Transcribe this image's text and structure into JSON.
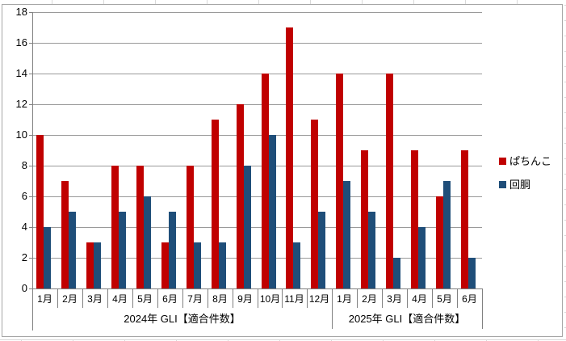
{
  "window": {
    "background": "#ffffff",
    "chart_border_color": "#a6a6a6"
  },
  "chart_data": {
    "type": "bar",
    "title": "",
    "xlabel": "",
    "ylabel": "",
    "ylim": [
      0,
      18
    ],
    "y_tick_step": 2,
    "y_tick_labels": [
      "0",
      "2",
      "4",
      "6",
      "8",
      "10",
      "12",
      "14",
      "16",
      "18"
    ],
    "grid": true,
    "legend_position": "right",
    "colors": {
      "gridline": "#9a9a9a",
      "axis": "#808080",
      "text": "#000000"
    },
    "groups": [
      {
        "label": "2024年 GLI【適合件数】",
        "months": [
          "1月",
          "2月",
          "3月",
          "4月",
          "5月",
          "6月",
          "7月",
          "8月",
          "9月",
          "10月",
          "11月",
          "12月"
        ]
      },
      {
        "label": "2025年 GLI【適合件数】",
        "months": [
          "1月",
          "2月",
          "3月",
          "4月",
          "5月",
          "6月"
        ]
      }
    ],
    "categories": [
      "1月",
      "2月",
      "3月",
      "4月",
      "5月",
      "6月",
      "7月",
      "8月",
      "9月",
      "10月",
      "11月",
      "12月",
      "1月",
      "2月",
      "3月",
      "4月",
      "5月",
      "6月"
    ],
    "series": [
      {
        "name": "ぱちんこ",
        "key": "pachinko",
        "color": "#c00000",
        "values": [
          10,
          7,
          3,
          8,
          8,
          3,
          8,
          11,
          12,
          14,
          17,
          11,
          14,
          9,
          14,
          9,
          6,
          9
        ]
      },
      {
        "name": "回胴",
        "key": "kaidou",
        "color": "#1f4e79",
        "values": [
          4,
          5,
          3,
          5,
          6,
          5,
          3,
          3,
          8,
          10,
          3,
          5,
          7,
          5,
          2,
          4,
          7,
          2
        ]
      }
    ]
  }
}
